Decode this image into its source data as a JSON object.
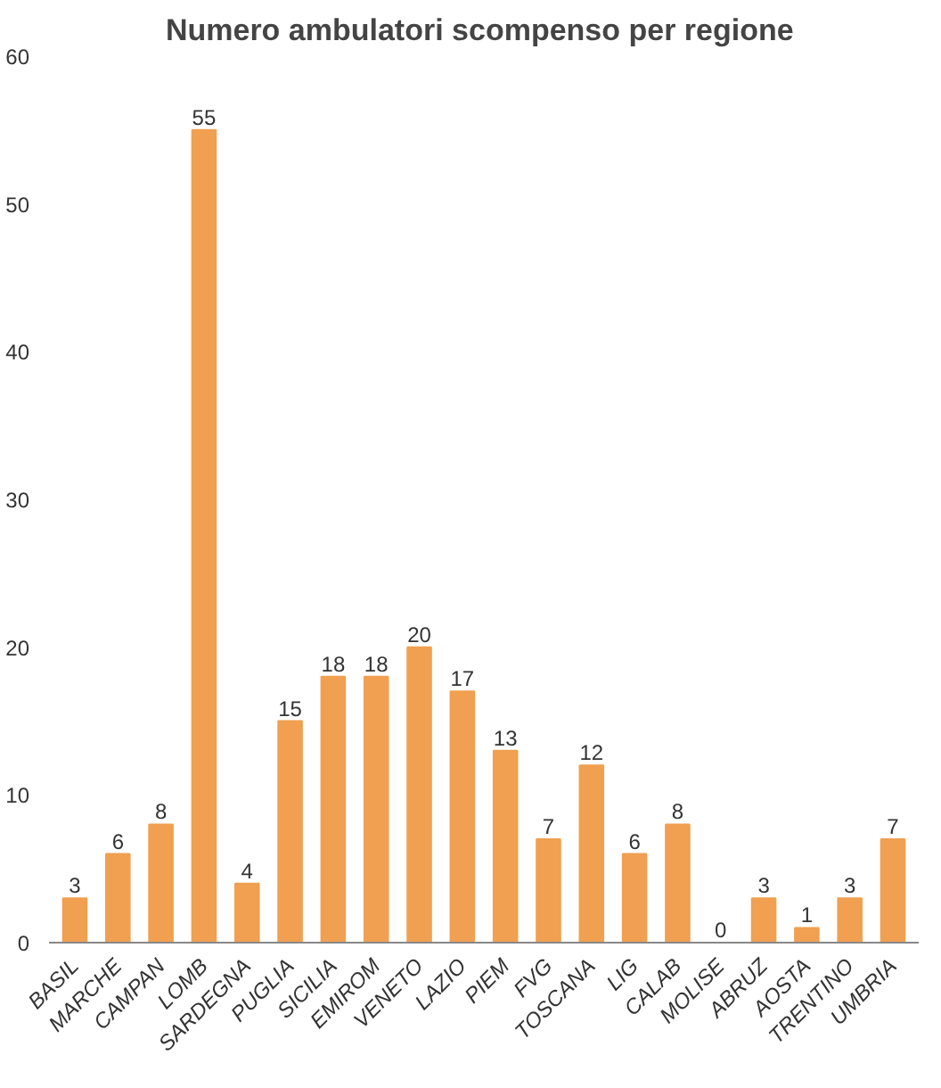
{
  "chart_data": {
    "type": "bar",
    "title": "Numero ambulatori scompenso  per regione",
    "categories": [
      "BASIL",
      "MARCHE",
      "CAMPAN",
      "LOMB",
      "SARDEGNA",
      "PUGLIA",
      "SICILIA",
      "EMIROM",
      "VENETO",
      "LAZIO",
      "PIEM",
      "FVG",
      "TOSCANA",
      "LIG",
      "CALAB",
      "MOLISE",
      "ABRUZ",
      "AOSTA",
      "TRENTINO",
      "UMBRIA"
    ],
    "values": [
      3,
      6,
      8,
      55,
      4,
      15,
      18,
      18,
      20,
      17,
      13,
      7,
      12,
      6,
      8,
      0,
      3,
      1,
      3,
      7
    ],
    "color": "#f0a050",
    "ylim": [
      0,
      60
    ],
    "yticks": [
      0,
      10,
      20,
      30,
      40,
      50,
      60
    ],
    "grid": false,
    "data_labels": true
  }
}
